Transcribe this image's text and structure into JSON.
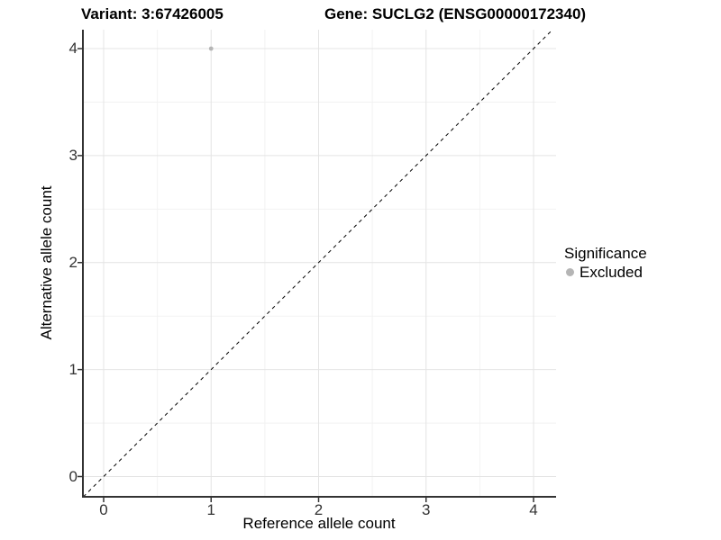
{
  "title": {
    "variant": "Variant: 3:67426005",
    "gene": "Gene: SUCLG2 (ENSG00000172340)"
  },
  "axes": {
    "x": {
      "label": "Reference allele count",
      "tick_labels": [
        "0",
        "1",
        "2",
        "3",
        "4"
      ]
    },
    "y": {
      "label": "Alternative allele count",
      "tick_labels": [
        "0",
        "1",
        "2",
        "3",
        "4"
      ]
    }
  },
  "legend": {
    "title": "Significance",
    "items": [
      {
        "label": "Excluded",
        "color": "#b5b5b5"
      }
    ]
  },
  "chart_data": {
    "type": "scatter",
    "title": "Variant: 3:67426005    Gene: SUCLG2 (ENSG00000172340)",
    "xlabel": "Reference allele count",
    "ylabel": "Alternative allele count",
    "xlim": [
      -0.2,
      4.21
    ],
    "ylim": [
      -0.19,
      4.18
    ],
    "x_ticks": [
      0,
      1,
      2,
      3,
      4
    ],
    "y_ticks": [
      0,
      1,
      2,
      3,
      4
    ],
    "minor_x_ticks": [
      0.5,
      1.5,
      2.5,
      3.5
    ],
    "minor_y_ticks": [
      0.5,
      1.5,
      2.5,
      3.5
    ],
    "grid": "major+minor",
    "legend_position": "right",
    "series": [
      {
        "name": "Excluded",
        "color": "#b5b5b5",
        "points": [
          {
            "x": 1,
            "y": 4
          }
        ]
      }
    ],
    "reference_line": {
      "type": "identity y=x",
      "style": "dashed",
      "color": "#000000"
    }
  },
  "colors": {
    "background": "#ffffff",
    "grid_major": "#e4e4e4",
    "grid_minor": "#f2f2f2",
    "axis": "#333333",
    "tick_label": "#333333",
    "point": "#b5b5b5",
    "dashed_line": "#000000"
  }
}
